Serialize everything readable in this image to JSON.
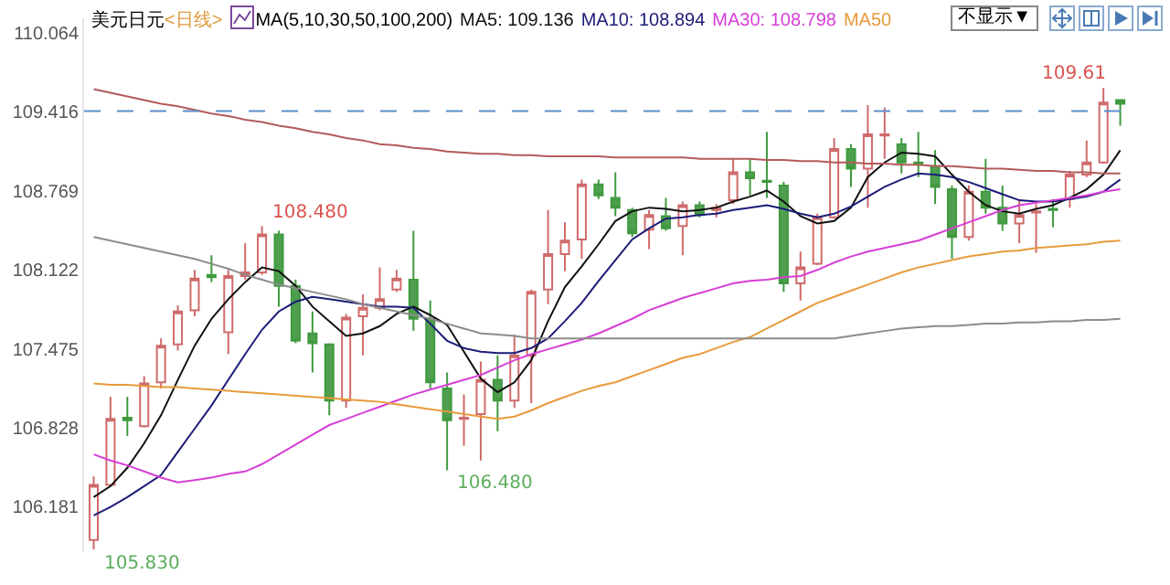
{
  "chart_data": {
    "type": "candlestick",
    "title": "美元日元",
    "subtitle": "<日线>",
    "categories": [
      null,
      null,
      null,
      null,
      null,
      null,
      null,
      null,
      null,
      null,
      null,
      null,
      null,
      null,
      null,
      null,
      null,
      null,
      null,
      null,
      null,
      null,
      null,
      null,
      null,
      null,
      null,
      null,
      null,
      null,
      null,
      null,
      null,
      null,
      null,
      null,
      null,
      null,
      null,
      null,
      null,
      null,
      null,
      null,
      null,
      null,
      null,
      null,
      null,
      null,
      null,
      null,
      null,
      null,
      null,
      null,
      null,
      null,
      null,
      null,
      null,
      null
    ],
    "ohlc": [
      [
        105.91,
        106.43,
        105.83,
        106.36
      ],
      [
        106.36,
        107.08,
        106.36,
        106.9
      ],
      [
        106.91,
        107.08,
        106.76,
        106.89
      ],
      [
        106.84,
        107.25,
        106.83,
        107.19
      ],
      [
        107.2,
        107.56,
        107.15,
        107.5
      ],
      [
        107.51,
        107.83,
        107.46,
        107.78
      ],
      [
        107.79,
        108.12,
        107.74,
        108.05
      ],
      [
        108.08,
        108.24,
        108.02,
        108.06
      ],
      [
        107.61,
        108.12,
        107.43,
        108.07
      ],
      [
        108.07,
        108.34,
        108.04,
        108.1
      ],
      [
        108.1,
        108.48,
        108.08,
        108.41
      ],
      [
        108.41,
        108.44,
        107.82,
        107.99
      ],
      [
        107.99,
        108.04,
        107.52,
        107.54
      ],
      [
        107.6,
        107.78,
        107.28,
        107.52
      ],
      [
        107.51,
        107.52,
        106.93,
        107.05
      ],
      [
        107.05,
        107.76,
        106.99,
        107.73
      ],
      [
        107.74,
        107.92,
        107.42,
        107.81
      ],
      [
        107.81,
        108.14,
        107.79,
        107.88
      ],
      [
        107.96,
        108.12,
        107.94,
        108.05
      ],
      [
        108.04,
        108.44,
        107.62,
        107.72
      ],
      [
        107.72,
        107.87,
        107.15,
        107.2
      ],
      [
        107.15,
        107.28,
        106.48,
        106.89
      ],
      [
        106.9,
        107.1,
        106.68,
        106.91
      ],
      [
        106.94,
        107.37,
        106.56,
        107.22
      ],
      [
        107.22,
        107.42,
        106.8,
        107.05
      ],
      [
        107.05,
        107.59,
        106.99,
        107.42
      ],
      [
        107.42,
        107.96,
        107.03,
        107.94
      ],
      [
        107.96,
        108.61,
        107.84,
        108.25
      ],
      [
        108.25,
        108.51,
        108.11,
        108.36
      ],
      [
        108.37,
        108.86,
        108.21,
        108.82
      ],
      [
        108.82,
        108.86,
        108.7,
        108.73
      ],
      [
        108.71,
        108.92,
        108.56,
        108.63
      ],
      [
        108.61,
        108.63,
        108.39,
        108.42
      ],
      [
        108.45,
        108.61,
        108.29,
        108.57
      ],
      [
        108.56,
        108.71,
        108.44,
        108.46
      ],
      [
        108.48,
        108.68,
        108.24,
        108.65
      ],
      [
        108.65,
        108.68,
        108.55,
        108.57
      ],
      [
        108.61,
        108.66,
        108.55,
        108.63
      ],
      [
        108.69,
        109.03,
        108.66,
        108.92
      ],
      [
        108.92,
        109.03,
        108.73,
        108.87
      ],
      [
        108.85,
        109.25,
        108.71,
        108.84
      ],
      [
        108.81,
        108.84,
        107.94,
        108.01
      ],
      [
        108.01,
        108.27,
        107.87,
        108.14
      ],
      [
        108.17,
        108.58,
        108.16,
        108.55
      ],
      [
        108.55,
        109.2,
        108.54,
        109.11
      ],
      [
        109.11,
        109.15,
        108.8,
        108.95
      ],
      [
        108.95,
        109.47,
        108.63,
        109.23
      ],
      [
        109.22,
        109.45,
        109.03,
        109.23
      ],
      [
        109.15,
        109.2,
        108.91,
        109.0
      ],
      [
        109.0,
        109.25,
        108.88,
        108.99
      ],
      [
        108.97,
        109.1,
        108.66,
        108.8
      ],
      [
        108.78,
        108.81,
        108.21,
        108.39
      ],
      [
        108.39,
        108.81,
        108.36,
        108.76
      ],
      [
        108.76,
        109.03,
        108.58,
        108.63
      ],
      [
        108.63,
        108.81,
        108.44,
        108.5
      ],
      [
        108.5,
        108.7,
        108.34,
        108.57
      ],
      [
        108.59,
        108.66,
        108.26,
        108.6
      ],
      [
        108.62,
        108.7,
        108.47,
        108.61
      ],
      [
        108.7,
        108.93,
        108.63,
        108.9
      ],
      [
        108.9,
        109.18,
        108.88,
        109.0
      ],
      [
        109.0,
        109.61,
        108.99,
        109.49
      ],
      [
        109.51,
        109.51,
        109.3,
        109.48
      ]
    ],
    "series": [
      {
        "type": "line",
        "name": "MA5: 109.136",
        "color": "#111111",
        "values": [
          106.26,
          106.35,
          106.5,
          106.7,
          106.93,
          107.22,
          107.5,
          107.72,
          107.88,
          108.02,
          108.14,
          108.11,
          107.99,
          107.82,
          107.7,
          107.58,
          107.6,
          107.66,
          107.76,
          107.82,
          107.75,
          107.67,
          107.45,
          107.23,
          107.12,
          107.2,
          107.38,
          107.7,
          107.98,
          108.15,
          108.33,
          108.52,
          108.6,
          108.63,
          108.62,
          108.6,
          108.61,
          108.63,
          108.68,
          108.72,
          108.77,
          108.68,
          108.56,
          108.5,
          108.52,
          108.63,
          108.88,
          109.0,
          109.08,
          109.07,
          109.05,
          108.9,
          108.76,
          108.65,
          108.6,
          108.58,
          108.62,
          108.65,
          108.71,
          108.78,
          108.9,
          109.1
        ]
      },
      {
        "type": "line",
        "name": "MA10: 108.894",
        "color": "#1c1c78",
        "values": [
          106.11,
          106.18,
          106.26,
          106.35,
          106.44,
          106.63,
          106.82,
          107.01,
          107.22,
          107.43,
          107.63,
          107.78,
          107.86,
          107.9,
          107.88,
          107.86,
          107.84,
          107.82,
          107.82,
          107.81,
          107.68,
          107.54,
          107.48,
          107.45,
          107.44,
          107.44,
          107.48,
          107.56,
          107.7,
          107.85,
          108.03,
          108.2,
          108.37,
          108.46,
          108.54,
          108.55,
          108.57,
          108.58,
          108.61,
          108.63,
          108.65,
          108.62,
          108.58,
          108.55,
          108.58,
          108.64,
          108.72,
          108.8,
          108.86,
          108.91,
          108.9,
          108.88,
          108.84,
          108.79,
          108.74,
          108.69,
          108.68,
          108.68,
          108.7,
          108.72,
          108.76,
          108.86
        ]
      },
      {
        "type": "line",
        "name": "MA30: 108.798",
        "color": "#d63fd6",
        "values": [
          106.61,
          106.56,
          106.52,
          106.47,
          106.42,
          106.38,
          106.4,
          106.42,
          106.45,
          106.47,
          106.53,
          106.61,
          106.69,
          106.77,
          106.85,
          106.9,
          106.95,
          107.0,
          107.05,
          107.1,
          107.14,
          107.18,
          107.22,
          107.26,
          107.32,
          107.38,
          107.43,
          107.47,
          107.51,
          107.55,
          107.6,
          107.66,
          107.72,
          107.79,
          107.84,
          107.89,
          107.93,
          107.97,
          108.01,
          108.03,
          108.04,
          108.06,
          108.07,
          108.12,
          108.18,
          108.23,
          108.27,
          108.3,
          108.33,
          108.36,
          108.41,
          108.46,
          108.51,
          108.56,
          108.61,
          108.65,
          108.67,
          108.69,
          108.71,
          108.73,
          108.76,
          108.78
        ]
      },
      {
        "type": "line",
        "name": "MA50",
        "color": "#e89a3c",
        "values": [
          107.19,
          107.18,
          107.18,
          107.17,
          107.16,
          107.16,
          107.15,
          107.14,
          107.13,
          107.12,
          107.11,
          107.1,
          107.09,
          107.08,
          107.07,
          107.06,
          107.05,
          107.04,
          107.02,
          107.0,
          106.98,
          106.96,
          106.94,
          106.92,
          106.9,
          106.92,
          106.97,
          107.03,
          107.08,
          107.13,
          107.17,
          107.2,
          107.25,
          107.3,
          107.35,
          107.4,
          107.43,
          107.48,
          107.53,
          107.57,
          107.64,
          107.71,
          107.78,
          107.85,
          107.9,
          107.95,
          108.0,
          108.05,
          108.1,
          108.14,
          108.17,
          108.2,
          108.23,
          108.25,
          108.27,
          108.28,
          108.3,
          108.31,
          108.32,
          108.33,
          108.35,
          108.36
        ]
      },
      {
        "type": "line",
        "color": "#8c8c8c",
        "values": [
          108.39,
          108.36,
          108.33,
          108.3,
          108.27,
          108.24,
          108.21,
          108.17,
          108.13,
          108.08,
          108.04,
          108.0,
          107.97,
          107.94,
          107.91,
          107.88,
          107.84,
          107.81,
          107.78,
          107.75,
          107.72,
          107.68,
          107.64,
          107.6,
          107.59,
          107.58,
          107.56,
          107.56,
          107.56,
          107.56,
          107.56,
          107.56,
          107.56,
          107.56,
          107.56,
          107.56,
          107.56,
          107.56,
          107.56,
          107.56,
          107.56,
          107.56,
          107.56,
          107.56,
          107.56,
          107.58,
          107.6,
          107.62,
          107.64,
          107.65,
          107.66,
          107.66,
          107.67,
          107.68,
          107.68,
          107.69,
          107.69,
          107.7,
          107.7,
          107.71,
          107.71,
          107.72
        ]
      },
      {
        "type": "line",
        "color": "#b45a5a",
        "values": [
          109.6,
          109.57,
          109.54,
          109.51,
          109.48,
          109.46,
          109.43,
          109.4,
          109.38,
          109.35,
          109.33,
          109.3,
          109.28,
          109.25,
          109.23,
          109.2,
          109.18,
          109.15,
          109.14,
          109.12,
          109.11,
          109.09,
          109.08,
          109.07,
          109.07,
          109.06,
          109.06,
          109.05,
          109.05,
          109.05,
          109.05,
          109.04,
          109.04,
          109.04,
          109.04,
          109.04,
          109.03,
          109.03,
          109.03,
          109.03,
          109.02,
          109.02,
          109.01,
          109.01,
          109.0,
          109.0,
          108.99,
          108.99,
          108.98,
          108.98,
          108.97,
          108.97,
          108.96,
          108.95,
          108.95,
          108.94,
          108.93,
          108.93,
          108.92,
          108.92,
          108.91,
          108.91
        ]
      }
    ],
    "ylim": [
      105.81,
      110.18
    ],
    "yticks": [
      110.064,
      109.416,
      108.769,
      108.122,
      107.475,
      106.828,
      106.181
    ],
    "tick_labels": "y",
    "grid": false,
    "legend": "top",
    "ref_lines": [
      {
        "axis": "y",
        "value": 109.42,
        "color": "#5b8fc9",
        "line_style": "dashed"
      }
    ],
    "annotations": [
      "MA(5,10,30,50,100,200)",
      "不显示▼",
      "108.480",
      "106.480",
      "105.830",
      "109.61"
    ]
  }
}
